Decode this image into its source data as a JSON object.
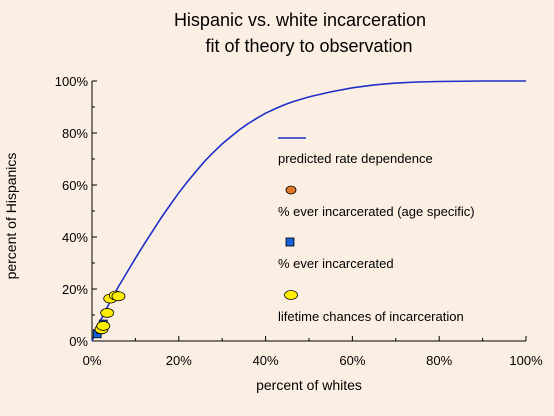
{
  "chart_data": {
    "type": "scatter",
    "title": [
      "Hispanic vs. white incarceration",
      "fit of theory to observation"
    ],
    "xlabel": "percent of whites",
    "ylabel": "percent of Hispanics",
    "xlim": [
      0,
      100
    ],
    "ylim": [
      0,
      100
    ],
    "x_ticks": [
      "0%",
      "20%",
      "40%",
      "60%",
      "80%",
      "100%"
    ],
    "y_ticks": [
      "0%",
      "20%",
      "40%",
      "60%",
      "80%",
      "100%"
    ],
    "legend_placement": "inside-right",
    "series": [
      {
        "name": "predicted rate dependence",
        "kind": "line",
        "color": "#1d2fc8",
        "x": [
          0,
          2,
          4,
          6,
          8,
          10,
          12,
          14,
          16,
          18,
          20,
          22,
          24,
          26,
          28,
          30,
          32,
          34,
          36,
          38,
          40,
          42,
          44,
          46,
          48,
          50,
          55,
          60,
          65,
          70,
          75,
          80,
          90,
          100
        ],
        "y": [
          0,
          8,
          14.6,
          20.6,
          26.2,
          31.8,
          37.2,
          42.4,
          47.5,
          52.3,
          57,
          61.3,
          65.3,
          69.2,
          72.6,
          75.8,
          78.6,
          81.3,
          83.6,
          85.7,
          87.6,
          89.2,
          90.6,
          91.9,
          92.9,
          93.9,
          95.8,
          97.4,
          98.5,
          99.2,
          99.6,
          99.8,
          100,
          100
        ]
      },
      {
        "name": "% ever incarcerated (age specific)",
        "kind": "points",
        "marker": "circle",
        "color": "#e07828",
        "x": [],
        "y": []
      },
      {
        "name": "% ever incarcerated",
        "kind": "points",
        "marker": "square",
        "color": "#1560d8",
        "x": [
          1.2,
          2.0,
          2.6
        ],
        "y": [
          2.8,
          4.5,
          6.5
        ]
      },
      {
        "name": "lifetime chances of incarceration",
        "kind": "points",
        "marker": "ellipse",
        "color": "#ffee00",
        "x": [
          2.2,
          2.6,
          3.5,
          4.2,
          5.5,
          6.1
        ],
        "y": [
          4.5,
          5.8,
          10.8,
          16.3,
          17.5,
          17.2
        ]
      }
    ]
  }
}
